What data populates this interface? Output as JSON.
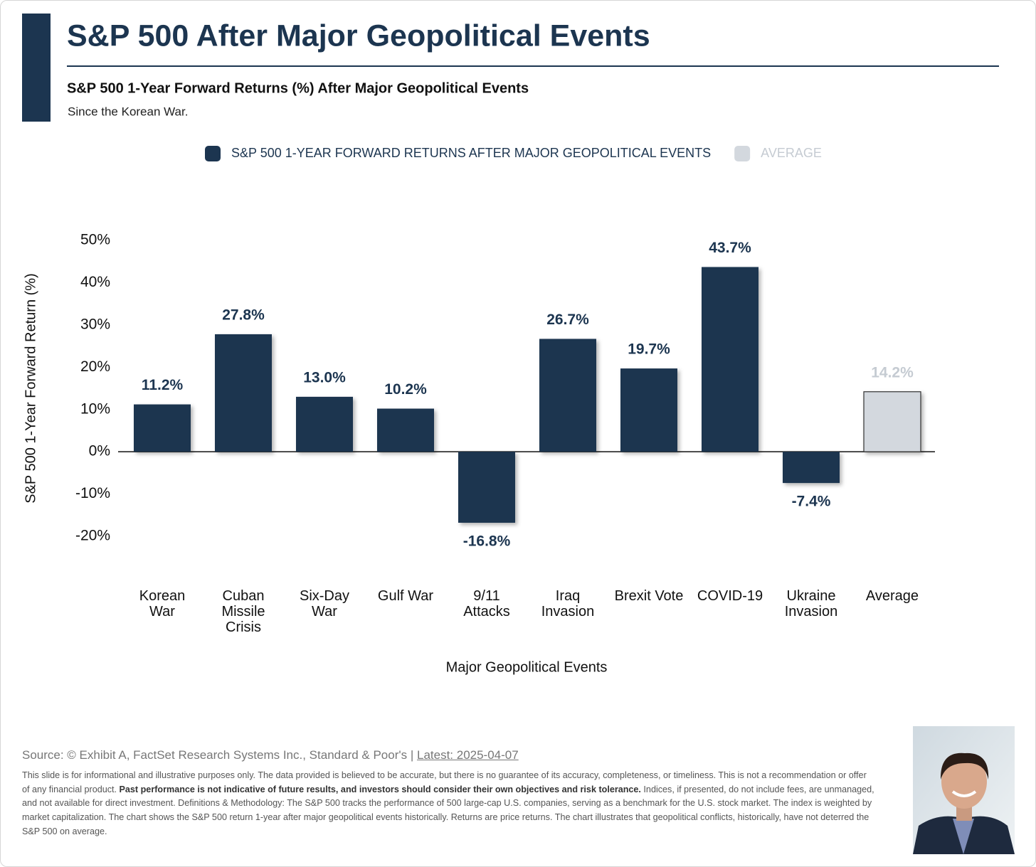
{
  "header": {
    "title": "S&P 500 After Major Geopolitical Events"
  },
  "chart_data": {
    "type": "bar",
    "title": "S&P 500 1-Year Forward Returns (%) After Major Geopolitical Events",
    "subtitle": "Since the Korean War.",
    "x_label": "Major Geopolitical Events",
    "y_label": "S&P 500 1-Year Forward Return (%)",
    "categories": [
      "Korean War",
      "Cuban Missile Crisis",
      "Six-Day War",
      "Gulf War",
      "9/11 Attacks",
      "Iraq Invasion",
      "Brexit Vote",
      "COVID-19",
      "Ukraine Invasion",
      "Average"
    ],
    "series": [
      {
        "name": "S&P 500 1-YEAR FORWARD RETURNS AFTER MAJOR GEOPOLITICAL EVENTS",
        "color": "#1c3550",
        "values": [
          11.2,
          27.8,
          13.0,
          10.2,
          -16.8,
          26.7,
          19.7,
          43.7,
          -7.4,
          null
        ],
        "value_labels": [
          "11.2%",
          "27.8%",
          "13.0%",
          "10.2%",
          "-16.8%",
          "26.7%",
          "19.7%",
          "43.7%",
          "-7.4%",
          null
        ]
      },
      {
        "name": "AVERAGE",
        "color": "#d3d8de",
        "values": [
          null,
          null,
          null,
          null,
          null,
          null,
          null,
          null,
          null,
          14.2
        ],
        "value_labels": [
          null,
          null,
          null,
          null,
          null,
          null,
          null,
          null,
          null,
          "14.2%"
        ]
      }
    ],
    "ylim": [
      -20,
      50
    ],
    "yticks": [
      {
        "value": -20,
        "label": "-20%"
      },
      {
        "value": -10,
        "label": "-10%"
      },
      {
        "value": 0,
        "label": "0%"
      },
      {
        "value": 10,
        "label": "10%"
      },
      {
        "value": 20,
        "label": "20%"
      },
      {
        "value": 30,
        "label": "30%"
      },
      {
        "value": 40,
        "label": "40%"
      },
      {
        "value": 50,
        "label": "50%"
      }
    ],
    "grid": false
  },
  "footer": {
    "source": "Source: © Exhibit A, FactSet Research Systems Inc., Standard & Poor's | ",
    "latest": "Latest: 2025-04-07",
    "disclaimer_before": "This slide is for informational and illustrative purposes only. The data provided is believed to be accurate, but there is no guarantee of its accuracy, completeness, or timeliness. This is not a recommendation or offer of any financial product. ",
    "disclaimer_bold": "Past performance is not indicative of future results, and investors should consider their own objectives and risk tolerance.",
    "disclaimer_after": " Indices, if presented, do not include fees, are unmanaged, and not available for direct investment. Definitions & Methodology: The S&P 500 tracks the performance of 500 large-cap U.S. companies, serving as a benchmark for the U.S. stock market. The index is weighted by market capitalization. The chart shows the S&P 500 return 1-year after major geopolitical events historically. Returns are price returns. The chart illustrates that geopolitical conflicts, historically, have not deterred the S&P 500 on average."
  }
}
